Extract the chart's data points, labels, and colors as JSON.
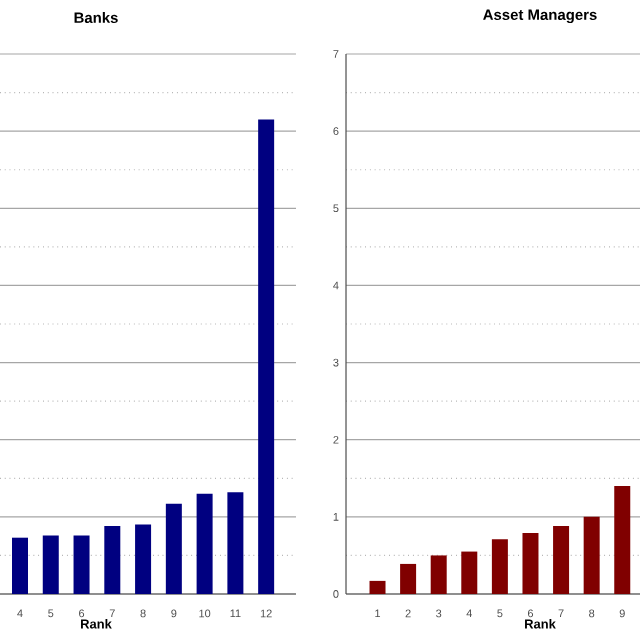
{
  "chart_data": [
    {
      "type": "bar",
      "title": "Banks",
      "xlabel": "Rank",
      "categories": [
        "4",
        "5",
        "6",
        "7",
        "8",
        "9",
        "10",
        "11",
        "12"
      ],
      "values": [
        0.73,
        0.76,
        0.76,
        0.88,
        0.9,
        1.17,
        1.3,
        1.32,
        6.15
      ],
      "color": "#000080",
      "ylim": [
        0,
        7
      ],
      "yticks": [
        0,
        {
          "value": 0.5,
          "label": null
        },
        1,
        {
          "value": 1.5,
          "label": null
        },
        2,
        {
          "value": 2.5,
          "label": null
        },
        3,
        {
          "value": 3.5,
          "label": null
        },
        4,
        {
          "value": 4.5,
          "label": null
        },
        5,
        {
          "value": 5.5,
          "label": null
        },
        6,
        {
          "value": 6.5,
          "label": null
        },
        7
      ],
      "grid": "y",
      "tick_labels": "x"
    },
    {
      "type": "bar",
      "title": "Asset Managers",
      "xlabel": "Rank",
      "categories": [
        "1",
        "2",
        "3",
        "4",
        "5",
        "6",
        "7",
        "8",
        "9"
      ],
      "values": [
        0.17,
        0.39,
        0.5,
        0.55,
        0.71,
        0.79,
        0.88,
        1.0,
        1.4
      ],
      "color": "#800000",
      "ylim": [
        0,
        7
      ],
      "yticks": [
        0,
        {
          "value": 0.5,
          "label": null
        },
        1,
        {
          "value": 1.5,
          "label": null
        },
        2,
        {
          "value": 2.5,
          "label": null
        },
        3,
        {
          "value": 3.5,
          "label": null
        },
        4,
        {
          "value": 4.5,
          "label": null
        },
        5,
        {
          "value": 5.5,
          "label": null
        },
        6,
        {
          "value": 6.5,
          "label": null
        },
        7
      ],
      "grid": "y"
    }
  ]
}
